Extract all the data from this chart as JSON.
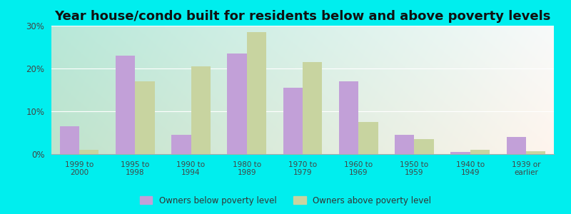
{
  "title": "Year house/condo built for residents below and above poverty levels",
  "categories": [
    "1999 to\n2000",
    "1995 to\n1998",
    "1990 to\n1994",
    "1980 to\n1989",
    "1970 to\n1979",
    "1960 to\n1969",
    "1950 to\n1959",
    "1940 to\n1949",
    "1939 or\nearlier"
  ],
  "below_poverty": [
    6.5,
    23.0,
    4.5,
    23.5,
    15.5,
    17.0,
    4.5,
    0.5,
    4.0
  ],
  "above_poverty": [
    1.0,
    17.0,
    20.5,
    28.5,
    21.5,
    7.5,
    3.5,
    1.0,
    0.7
  ],
  "below_color": "#C2A0D8",
  "above_color": "#C8D4A0",
  "background_outer": "#00EEEE",
  "ylim": [
    0,
    30
  ],
  "yticks": [
    0,
    10,
    20,
    30
  ],
  "ytick_labels": [
    "0%",
    "10%",
    "20%",
    "30%"
  ],
  "title_fontsize": 13,
  "bar_width": 0.35,
  "legend_below_label": "Owners below poverty level",
  "legend_above_label": "Owners above poverty level"
}
